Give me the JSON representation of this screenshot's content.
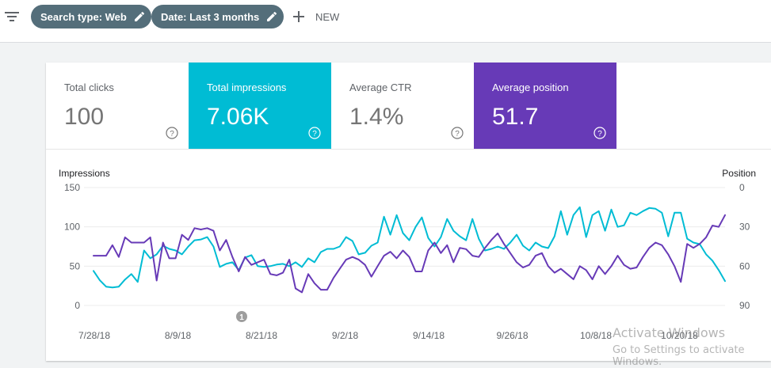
{
  "toolbar": {
    "filter_icon": "filter-list-icon",
    "chips": [
      {
        "label": "Search type: Web",
        "icon": "pencil-icon"
      },
      {
        "label": "Date: Last 3 months",
        "icon": "pencil-icon"
      }
    ],
    "new_label": "NEW"
  },
  "metrics": [
    {
      "label": "Total clicks",
      "value": "100",
      "selected": false
    },
    {
      "label": "Total impressions",
      "value": "7.06K",
      "selected": true,
      "color": "#00bcd4"
    },
    {
      "label": "Average CTR",
      "value": "1.4%",
      "selected": false
    },
    {
      "label": "Average position",
      "value": "51.7",
      "selected": true,
      "color": "#673ab7"
    }
  ],
  "chart_data": {
    "type": "line",
    "y_left_label": "Impressions",
    "y_right_label": "Position",
    "y_left_ticks": [
      "150",
      "100",
      "50",
      "0"
    ],
    "y_right_ticks": [
      "0",
      "30",
      "60",
      "90"
    ],
    "y_left_range": [
      0,
      150
    ],
    "y_right_range": [
      0,
      90
    ],
    "y_right_inverted": true,
    "x_tick_labels": [
      "7/28/18",
      "8/9/18",
      "8/21/18",
      "9/2/18",
      "9/14/18",
      "9/26/18",
      "10/8/18",
      "10/20/18"
    ],
    "annotation": "1",
    "series": [
      {
        "name": "Impressions",
        "axis": "left",
        "color": "#00bcd4",
        "values": [
          44,
          32,
          24,
          23,
          24,
          33,
          40,
          30,
          70,
          60,
          65,
          76,
          72,
          70,
          65,
          75,
          83,
          84,
          87,
          75,
          49,
          53,
          55,
          45,
          61,
          64,
          50,
          49,
          50,
          52,
          53,
          50,
          55,
          49,
          60,
          55,
          68,
          72,
          72,
          75,
          87,
          82,
          65,
          67,
          76,
          80,
          113,
          90,
          115,
          92,
          83,
          100,
          112,
          86,
          75,
          87,
          110,
          95,
          88,
          83,
          110,
          85,
          70,
          72,
          75,
          72,
          80,
          90,
          76,
          70,
          80,
          75,
          73,
          88,
          120,
          90,
          115,
          125,
          87,
          115,
          120,
          95,
          122,
          100,
          102,
          118,
          115,
          120,
          124,
          123,
          118,
          88,
          118,
          118,
          85,
          80,
          78,
          65,
          57,
          45,
          31
        ]
      },
      {
        "name": "Position",
        "axis": "right",
        "color": "#673ab7",
        "values": [
          52,
          52,
          52,
          44,
          53,
          38,
          42,
          42,
          42,
          38,
          71,
          42,
          54,
          54,
          36,
          40,
          31,
          32,
          31,
          33,
          48,
          40,
          53,
          64,
          53,
          59,
          57,
          55,
          66,
          67,
          65,
          55,
          77,
          80,
          66,
          73,
          78,
          78,
          69,
          62,
          55,
          53,
          55,
          59,
          68,
          60,
          52,
          49,
          54,
          48,
          53,
          64,
          64,
          48,
          42,
          50,
          44,
          57,
          46,
          47,
          52,
          53,
          46,
          40,
          35,
          43,
          50,
          57,
          61,
          59,
          52,
          50,
          60,
          65,
          62,
          66,
          70,
          60,
          63,
          70,
          60,
          66,
          60,
          52,
          59,
          62,
          61,
          53,
          46,
          42,
          44,
          51,
          60,
          72,
          43,
          46,
          43,
          38,
          29,
          30,
          21
        ]
      }
    ]
  }
}
